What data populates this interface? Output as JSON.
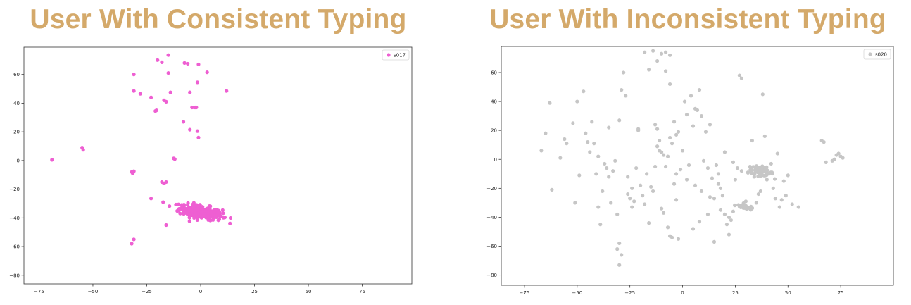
{
  "panels": [
    {
      "title": "User With Consistent Typing"
    },
    {
      "title": "User With Inconsistent Typing"
    }
  ],
  "chart_data": [
    {
      "type": "scatter",
      "title": "User With Consistent Typing",
      "xlabel": "",
      "ylabel": "",
      "xlim": [
        -82,
        98
      ],
      "ylim": [
        -86,
        79
      ],
      "xticks": [
        -75,
        -50,
        -25,
        0,
        25,
        50,
        75
      ],
      "yticks": [
        -80,
        -60,
        -40,
        -20,
        0,
        20,
        40,
        60
      ],
      "grid": false,
      "legend": "top-right",
      "series": [
        {
          "name": "s017",
          "color": "#ee5fd2",
          "points": [
            [
              -69,
              0.5
            ],
            [
              -55,
              9
            ],
            [
              -54.5,
              7.5
            ],
            [
              -32,
              -8
            ],
            [
              -31.5,
              -9
            ],
            [
              -31,
              -7.5
            ],
            [
              -12.5,
              1.5
            ],
            [
              -12,
              1
            ],
            [
              -31,
              60
            ],
            [
              -31,
              48.5
            ],
            [
              -28,
              46.5
            ],
            [
              -23,
              44
            ],
            [
              -21,
              34.5
            ],
            [
              -20.5,
              35
            ],
            [
              -20,
              70
            ],
            [
              -18,
              68.5
            ],
            [
              -17,
              42
            ],
            [
              -16,
              41
            ],
            [
              -15,
              73.5
            ],
            [
              -15,
              61
            ],
            [
              -14,
              47.5
            ],
            [
              -8,
              27
            ],
            [
              -7.5,
              68
            ],
            [
              -6,
              67.5
            ],
            [
              -5,
              21.5
            ],
            [
              -5,
              47.5
            ],
            [
              -4,
              37
            ],
            [
              -3,
              37
            ],
            [
              -2,
              37
            ],
            [
              -1.5,
              54.5
            ],
            [
              -1,
              67
            ],
            [
              -2.5,
              37
            ],
            [
              -1.5,
              20.5
            ],
            [
              -1,
              16
            ],
            [
              3,
              61.5
            ],
            [
              12,
              48.5
            ],
            [
              -18,
              -15
            ],
            [
              -17,
              -16
            ],
            [
              -16,
              -15
            ],
            [
              -23,
              -26.5
            ],
            [
              -16,
              -45
            ],
            [
              -31,
              -55
            ],
            [
              -32,
              -58
            ]
          ],
          "cluster": {
            "center": [
              0,
              -36
            ],
            "spread": [
              10,
              4.5
            ],
            "n": 280
          }
        }
      ]
    },
    {
      "type": "scatter",
      "title": "User With Inconsistent Typing",
      "xlabel": "",
      "ylabel": "",
      "xlim": [
        -86,
        100
      ],
      "ylim": [
        -87,
        78
      ],
      "xticks": [
        -75,
        -50,
        -25,
        0,
        25,
        50,
        75
      ],
      "yticks": [
        -80,
        -60,
        -40,
        -20,
        0,
        20,
        40,
        60
      ],
      "grid": false,
      "legend": "top-right",
      "series": [
        {
          "name": "s020",
          "color": "#c6c6c6",
          "points": [
            [
              -67,
              6
            ],
            [
              -65,
              18
            ],
            [
              -63,
              39
            ],
            [
              -62,
              -21
            ],
            [
              -58,
              1
            ],
            [
              -56,
              14
            ],
            [
              -55,
              11
            ],
            [
              -51,
              -30
            ],
            [
              -50,
              40
            ],
            [
              -49,
              -11
            ],
            [
              -47,
              47
            ],
            [
              -46,
              18
            ],
            [
              -44,
              5
            ],
            [
              -43,
              26
            ],
            [
              -42,
              11
            ],
            [
              -41,
              -10
            ],
            [
              -40,
              2
            ],
            [
              -40,
              -33
            ],
            [
              -38,
              -22
            ],
            [
              -37,
              -3
            ],
            [
              -36,
              -6
            ],
            [
              -35,
              22
            ],
            [
              -34,
              -30
            ],
            [
              -33,
              -8
            ],
            [
              -32,
              -1
            ],
            [
              -31,
              -38
            ],
            [
              -30,
              27
            ],
            [
              -29,
              48
            ],
            [
              -28,
              60
            ],
            [
              -27,
              44
            ],
            [
              -26,
              -12
            ],
            [
              -25,
              -27
            ],
            [
              -24,
              -33
            ],
            [
              -23,
              -29
            ],
            [
              -22,
              -6
            ],
            [
              -21,
              20
            ],
            [
              -20,
              -18
            ],
            [
              -19,
              -25
            ],
            [
              -18,
              -31
            ],
            [
              -17,
              -10
            ],
            [
              -16,
              -44
            ],
            [
              -15,
              -19
            ],
            [
              -14,
              -22
            ],
            [
              -13,
              -5
            ],
            [
              -12,
              21
            ],
            [
              -11,
              13
            ],
            [
              -10,
              -34
            ],
            [
              -9,
              -37
            ],
            [
              -8,
              61
            ],
            [
              -7,
              -47
            ],
            [
              -6,
              52
            ],
            [
              -5,
              -54
            ],
            [
              -4,
              -17
            ],
            [
              -3,
              -28
            ],
            [
              -31,
              -62
            ],
            [
              -30,
              -73
            ],
            [
              -30,
              -58
            ],
            [
              -29,
              -66
            ],
            [
              -21,
              21
            ],
            [
              -18,
              74
            ],
            [
              -16,
              62
            ],
            [
              -14,
              75
            ],
            [
              -12,
              68
            ],
            [
              -10,
              73
            ],
            [
              -8,
              74
            ],
            [
              -6,
              72
            ],
            [
              -13,
              24
            ],
            [
              -12,
              9
            ],
            [
              -11,
              6
            ],
            [
              -10,
              5
            ],
            [
              -9,
              3
            ],
            [
              -8,
              -5
            ],
            [
              -7,
              2
            ],
            [
              -6,
              15
            ],
            [
              -5,
              11
            ],
            [
              -4,
              26
            ],
            [
              -3,
              17
            ],
            [
              -2,
              19
            ],
            [
              -1,
              -7
            ],
            [
              0,
              6
            ],
            [
              1,
              40
            ],
            [
              2,
              31
            ],
            [
              3,
              -4
            ],
            [
              4,
              44
            ],
            [
              5,
              23
            ],
            [
              6,
              35
            ],
            [
              7,
              34
            ],
            [
              8,
              48
            ],
            [
              9,
              30
            ],
            [
              10,
              -1
            ],
            [
              11,
              19
            ],
            [
              12,
              -6
            ],
            [
              13,
              24
            ],
            [
              14,
              -13
            ],
            [
              15,
              -27
            ],
            [
              16,
              -4
            ],
            [
              17,
              -17
            ],
            [
              18,
              -20
            ],
            [
              19,
              -25
            ],
            [
              20,
              -38
            ],
            [
              21,
              -45
            ],
            [
              22,
              -52
            ],
            [
              23,
              -42
            ],
            [
              24,
              -36
            ],
            [
              25,
              -14
            ],
            [
              26,
              -6
            ],
            [
              27,
              58
            ],
            [
              28,
              56
            ],
            [
              29,
              -33
            ],
            [
              30,
              -29
            ],
            [
              31,
              -9
            ],
            [
              32,
              -5
            ],
            [
              33,
              13
            ],
            [
              34,
              -12
            ],
            [
              35,
              -30
            ],
            [
              36,
              -24
            ],
            [
              37,
              -22
            ],
            [
              38,
              45
            ],
            [
              39,
              16
            ],
            [
              40,
              -14
            ],
            [
              41,
              -10
            ],
            [
              42,
              -3
            ],
            [
              43,
              -20
            ],
            [
              44,
              -27
            ],
            [
              45,
              4
            ],
            [
              46,
              -33
            ],
            [
              47,
              -28
            ],
            [
              48,
              -15
            ],
            [
              49,
              -25
            ],
            [
              50,
              -11
            ],
            [
              52,
              -31
            ],
            [
              55,
              -33
            ],
            [
              66,
              13
            ],
            [
              67,
              12
            ],
            [
              68,
              -2
            ],
            [
              71,
              -1
            ],
            [
              72,
              0
            ],
            [
              73,
              3
            ],
            [
              74,
              4
            ],
            [
              75,
              2
            ],
            [
              76,
              1
            ],
            [
              -2,
              -55
            ],
            [
              -6,
              -53
            ],
            [
              5,
              -48
            ],
            [
              8,
              -43
            ],
            [
              12,
              -38
            ],
            [
              15,
              -57
            ],
            [
              18,
              -35
            ],
            [
              22,
              -40
            ],
            [
              -26,
              -24
            ],
            [
              -24,
              -20
            ],
            [
              -35,
              -12
            ],
            [
              -52,
              25
            ],
            [
              -45,
              12
            ],
            [
              -39,
              -45
            ],
            [
              -3,
              -10
            ],
            [
              2,
              -14
            ],
            [
              6,
              -18
            ],
            [
              9,
              -22
            ],
            [
              13,
              -26
            ],
            [
              17,
              -10
            ],
            [
              20,
              5
            ],
            [
              24,
              -2
            ],
            [
              28,
              -8
            ]
          ],
          "clusters": [
            {
              "center": [
                37,
                -8
              ],
              "spread": [
                6,
                3
              ],
              "n": 60
            },
            {
              "center": [
                30,
                -33
              ],
              "spread": [
                5,
                1.5
              ],
              "n": 40
            }
          ]
        }
      ]
    }
  ]
}
